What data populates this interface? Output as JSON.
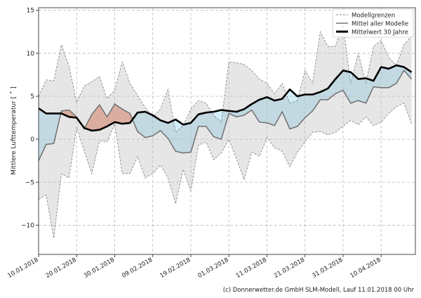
{
  "chart_data": {
    "type": "line",
    "title": "",
    "xlabel": "",
    "ylabel": "Mittlere Lufttemperatur [ ˚ ]",
    "ylim": [
      -13.4,
      15.3
    ],
    "xlim": [
      "10.01.2018",
      "19.04.2018"
    ],
    "yticks": [
      -10,
      -5,
      0,
      5,
      10,
      15
    ],
    "xticks": [
      "10.01.2018",
      "20.01.2018",
      "30.01.2018",
      "09.02.2018",
      "19.02.2018",
      "01.03.2018",
      "11.03.2018",
      "21.03.2018",
      "31.03.2018",
      "10.04.2018"
    ],
    "grid": true,
    "legend_position": "top-right",
    "x": [
      "10.01.2018",
      "12.01.2018",
      "14.01.2018",
      "16.01.2018",
      "18.01.2018",
      "20.01.2018",
      "22.01.2018",
      "24.01.2018",
      "26.01.2018",
      "28.01.2018",
      "30.01.2018",
      "01.02.2018",
      "03.02.2018",
      "05.02.2018",
      "07.02.2018",
      "09.02.2018",
      "11.02.2018",
      "13.02.2018",
      "15.02.2018",
      "17.02.2018",
      "19.02.2018",
      "21.02.2018",
      "23.02.2018",
      "25.02.2018",
      "27.02.2018",
      "01.03.2018",
      "03.03.2018",
      "05.03.2018",
      "07.03.2018",
      "09.03.2018",
      "11.03.2018",
      "13.03.2018",
      "15.03.2018",
      "17.03.2018",
      "19.03.2018",
      "21.03.2018",
      "23.03.2018",
      "25.03.2018",
      "27.03.2018",
      "29.03.2018",
      "31.03.2018",
      "02.04.2018",
      "04.04.2018",
      "06.04.2018",
      "08.04.2018",
      "10.04.2018",
      "12.04.2018",
      "14.04.2018",
      "16.04.2018",
      "18.04.2018"
    ],
    "series": [
      {
        "name": "Modellgrenzen",
        "role": "upper",
        "color": "#808080",
        "values": [
          5.0,
          6.9,
          6.8,
          11.0,
          8.5,
          4.3,
          6.2,
          6.7,
          7.3,
          4.7,
          5.7,
          9.0,
          6.5,
          5.1,
          3.7,
          2.6,
          3.5,
          5.8,
          0.8,
          1.6,
          3.5,
          4.5,
          4.2,
          2.8,
          2.0,
          9.0,
          8.9,
          8.7,
          8.0,
          7.0,
          6.5,
          5.3,
          6.5,
          4.2,
          4.5,
          8.0,
          6.5,
          12.5,
          10.8,
          10.8,
          13.5,
          6.5,
          10.0,
          6.5,
          10.8,
          11.5,
          9.5,
          8.6,
          11.0,
          12.0
        ]
      },
      {
        "name": "Modellgrenzen",
        "role": "lower",
        "color": "#808080",
        "values": [
          -7.0,
          -6.5,
          -11.5,
          -4.0,
          -4.5,
          1.4,
          -1.4,
          -4.0,
          -0.2,
          -0.3,
          1.8,
          -4.0,
          -4.0,
          -2.0,
          -4.5,
          -4.0,
          -3.0,
          -4.5,
          -7.5,
          -3.5,
          -6.0,
          -0.7,
          -0.3,
          -2.4,
          -1.6,
          0.0,
          -2.3,
          -4.7,
          -1.5,
          -2.0,
          0.2,
          -1.0,
          -1.4,
          -3.2,
          -1.5,
          -0.3,
          0.8,
          0.9,
          0.5,
          0.8,
          1.5,
          2.2,
          1.7,
          2.6,
          1.6,
          2.0,
          3.0,
          3.8,
          4.2,
          1.8
        ]
      },
      {
        "name": "Mittel aller Modelle",
        "role": "model_mean",
        "color": "#707070",
        "values": [
          -2.5,
          -0.6,
          -0.5,
          3.3,
          3.4,
          2.6,
          1.2,
          2.9,
          4.0,
          2.6,
          4.1,
          3.5,
          3.0,
          0.9,
          0.2,
          0.4,
          1.0,
          0.1,
          -1.4,
          -1.6,
          -1.5,
          1.5,
          1.5,
          0.3,
          0.0,
          3.0,
          2.6,
          2.8,
          3.4,
          2.0,
          1.9,
          1.6,
          3.2,
          1.2,
          1.5,
          2.5,
          3.3,
          4.6,
          4.6,
          5.3,
          5.7,
          4.2,
          4.5,
          4.2,
          6.1,
          6.0,
          6.0,
          6.5,
          8.0,
          7.0
        ]
      },
      {
        "name": "Mittelwert 30 Jahre",
        "role": "climate_mean",
        "color": "#000000",
        "values": [
          3.6,
          3.0,
          3.0,
          3.0,
          2.6,
          2.5,
          1.3,
          1.0,
          1.1,
          1.5,
          2.0,
          1.8,
          1.9,
          3.1,
          3.2,
          2.8,
          2.2,
          1.9,
          2.3,
          1.7,
          1.9,
          2.9,
          3.1,
          3.2,
          3.4,
          3.3,
          3.2,
          3.5,
          4.1,
          4.6,
          4.9,
          4.5,
          4.7,
          5.8,
          5.0,
          5.2,
          5.2,
          5.5,
          5.9,
          7.0,
          8.0,
          7.8,
          7.0,
          7.1,
          6.8,
          8.4,
          8.2,
          8.6,
          8.4,
          7.8
        ]
      }
    ],
    "fill_colors": {
      "above_climate": "#f2b8a8",
      "below_climate": "#d2effa",
      "model_range": "#808080"
    }
  },
  "legend": {
    "items": [
      "Modellgrenzen",
      "Mittel aller Modelle",
      "Mittelwert 30 Jahre"
    ]
  },
  "footer": "(c) Donnerwetter.de GmbH SLM-Modell, Lauf 11.01.2018 00 Uhr"
}
